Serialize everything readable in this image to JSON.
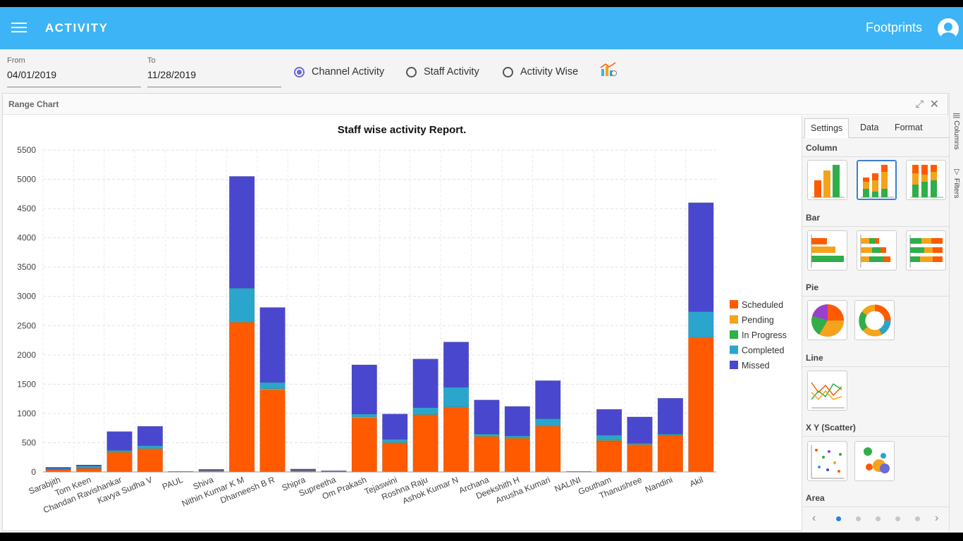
{
  "header": {
    "title": "ACTIVITY",
    "brand": "Footprints"
  },
  "filters": {
    "from_label": "From",
    "from_value": "04/01/2019",
    "to_label": "To",
    "to_value": "11/28/2019",
    "radios": [
      {
        "label": "Channel Activity",
        "selected": true
      },
      {
        "label": "Staff Activity",
        "selected": false
      },
      {
        "label": "Activity Wise",
        "selected": false
      }
    ]
  },
  "card": {
    "title": "Range Chart"
  },
  "panel": {
    "tabs": [
      "Settings",
      "Data",
      "Format"
    ],
    "sections": [
      "Column",
      "Bar",
      "Pie",
      "Line",
      "X Y (Scatter)",
      "Area"
    ]
  },
  "rail": {
    "columns": "Columns",
    "filters": "Filters"
  },
  "colors": {
    "Scheduled": "#ff5a00",
    "Pending": "#f5a31a",
    "In Progress": "#2fae4a",
    "Completed": "#2aa5cc",
    "Missed": "#4a47cf",
    "accent": "#3cb4f6"
  },
  "chart_data": {
    "type": "bar",
    "stacked": true,
    "title": "Staff wise activity Report.",
    "xlabel": "",
    "ylabel": "",
    "ylim": [
      0,
      5500
    ],
    "yticks": [
      0,
      500,
      1000,
      1500,
      2000,
      2500,
      3000,
      3500,
      4000,
      4500,
      5000,
      5500
    ],
    "legend_position": "right",
    "categories": [
      "Sarabjith",
      "Tom Keen",
      "Chandan Ravishankar",
      "Kavya Sudha V",
      "PAUL",
      "Shiva",
      "Nithin Kumar K M",
      "Dharneesh B R",
      "Shipra",
      "Supreetha",
      "Om Prakash",
      "Tejaswini",
      "Roshna Raju",
      "Ashok Kumar N",
      "Archana",
      "Deekshith H",
      "Anusha Kumari",
      "NALINI",
      "Goutham",
      "Thanushree",
      "Nandini",
      "Akil"
    ],
    "series": [
      {
        "name": "Scheduled",
        "values": [
          40,
          60,
          330,
          390,
          0,
          20,
          2550,
          1400,
          20,
          10,
          920,
          490,
          970,
          1100,
          600,
          570,
          780,
          0,
          530,
          460,
          620,
          2290
        ]
      },
      {
        "name": "Pending",
        "values": [
          5,
          5,
          10,
          10,
          0,
          0,
          10,
          20,
          0,
          0,
          20,
          10,
          10,
          10,
          10,
          10,
          10,
          0,
          10,
          10,
          10,
          10
        ]
      },
      {
        "name": "In Progress",
        "values": [
          0,
          0,
          0,
          0,
          0,
          0,
          0,
          0,
          0,
          0,
          0,
          0,
          0,
          0,
          0,
          0,
          0,
          0,
          0,
          0,
          0,
          0
        ]
      },
      {
        "name": "Completed",
        "values": [
          15,
          35,
          30,
          50,
          5,
          10,
          580,
          110,
          10,
          5,
          50,
          60,
          120,
          340,
          40,
          40,
          120,
          5,
          90,
          20,
          20,
          440
        ]
      },
      {
        "name": "Missed",
        "values": [
          20,
          20,
          320,
          330,
          5,
          15,
          1910,
          1280,
          20,
          5,
          840,
          430,
          830,
          770,
          580,
          500,
          650,
          5,
          440,
          450,
          610,
          1860
        ]
      }
    ]
  }
}
